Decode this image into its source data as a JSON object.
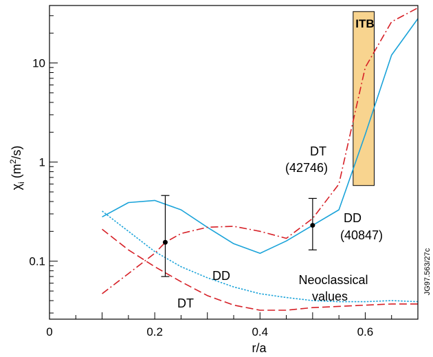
{
  "chart_data": {
    "type": "line",
    "xlabel": "r/a",
    "ylabel": {
      "base": "χ",
      "sub": "i",
      "rest1": " (m",
      "sup": "2",
      "rest2": "/s)"
    },
    "xlim": [
      0,
      0.7
    ],
    "ylim": [
      0.026,
      38
    ],
    "yscale": "log",
    "x_ticks": [
      {
        "value": 0,
        "label": "0"
      },
      {
        "value": 0.2,
        "label": "0.2"
      },
      {
        "value": 0.4,
        "label": "0.4"
      },
      {
        "value": 0.6,
        "label": "0.6"
      }
    ],
    "y_ticks": [
      {
        "value": 0.1,
        "label": "0.1"
      },
      {
        "value": 1,
        "label": "1"
      },
      {
        "value": 10,
        "label": "10"
      }
    ],
    "grid": false,
    "series": [
      {
        "id": "dd-measured",
        "color": "#1aa3d9",
        "style": "solid",
        "x": [
          0.1,
          0.15,
          0.2,
          0.25,
          0.3,
          0.35,
          0.4,
          0.45,
          0.5,
          0.55,
          0.6,
          0.65,
          0.7
        ],
        "y": [
          0.28,
          0.39,
          0.41,
          0.33,
          0.22,
          0.15,
          0.12,
          0.16,
          0.23,
          0.33,
          1.9,
          12,
          28
        ]
      },
      {
        "id": "dt-measured",
        "color": "#d61f26",
        "style": "dashdot",
        "x": [
          0.1,
          0.15,
          0.2,
          0.22,
          0.25,
          0.3,
          0.35,
          0.4,
          0.45,
          0.5,
          0.55,
          0.6,
          0.65,
          0.7
        ],
        "y": [
          0.047,
          0.075,
          0.12,
          0.155,
          0.19,
          0.22,
          0.225,
          0.2,
          0.17,
          0.27,
          0.6,
          9,
          26,
          36
        ]
      },
      {
        "id": "dd-neoclassical",
        "color": "#1aa3d9",
        "style": "dotted",
        "x": [
          0.1,
          0.15,
          0.2,
          0.25,
          0.3,
          0.35,
          0.4,
          0.45,
          0.5,
          0.55,
          0.6,
          0.65,
          0.7
        ],
        "y": [
          0.32,
          0.2,
          0.125,
          0.088,
          0.068,
          0.055,
          0.047,
          0.043,
          0.04,
          0.039,
          0.039,
          0.04,
          0.039
        ]
      },
      {
        "id": "dt-neoclassical",
        "color": "#d61f26",
        "style": "dashed",
        "x": [
          0.1,
          0.15,
          0.2,
          0.25,
          0.3,
          0.35,
          0.4,
          0.45,
          0.5,
          0.55,
          0.6,
          0.65,
          0.7
        ],
        "y": [
          0.21,
          0.13,
          0.088,
          0.062,
          0.045,
          0.036,
          0.032,
          0.032,
          0.034,
          0.035,
          0.036,
          0.037,
          0.037
        ]
      }
    ],
    "error_bars": [
      {
        "x": 0.22,
        "y": 0.155,
        "low": 0.07,
        "high": 0.46
      },
      {
        "x": 0.5,
        "y": 0.23,
        "low": 0.13,
        "high": 0.43
      }
    ],
    "itb_band": {
      "x_start": 0.577,
      "x_end": 0.617,
      "y_low": 0.58,
      "y_high": 33,
      "label": "ITB",
      "color": "#f8d48f"
    },
    "annotations": {
      "dt_shot_line1": "DT",
      "dt_shot_line2": "(42746)",
      "dd_shot_line1": "DD",
      "dd_shot_line2": "(40847)",
      "dd_neo": "DD",
      "dt_neo": "DT",
      "neo_line1": "Neoclassical",
      "neo_line2": "values"
    },
    "figure_code": "JG97.563/27c"
  }
}
